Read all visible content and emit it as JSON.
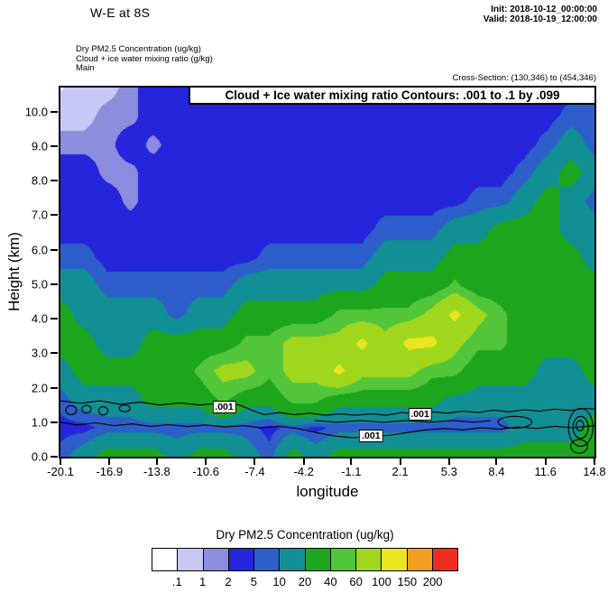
{
  "header": {
    "title": "W-E at 8S",
    "init_label": "Init: 2018-10-12_00:00:00",
    "valid_label": "Valid: 2018-10-19_12:00:00",
    "field1": "Dry PM2.5 Concentration   (ug/kg)",
    "field2": "Cloud + ice water mixing ratio   (g/kg)",
    "field3": "Main",
    "cross_section": "Cross-Section: (130,346) to (454,346)"
  },
  "plot": {
    "overlay_title": "Cloud + Ice water mixing ratio Contours: .001 to .1 by .099",
    "xlabel": "longitude",
    "ylabel": "Height (km)"
  },
  "legend": {
    "title": "Dry PM2.5 Concentration  (ug/kg)",
    "tick_labels": [
      ".1",
      "1",
      "2",
      "5",
      "10",
      "20",
      "40",
      "60",
      "100",
      "150",
      "200"
    ]
  },
  "chart_data": {
    "type": "heatmap",
    "title": "W-E at 8S vertical cross-section: Dry PM2.5 Concentration (ug/kg) filled contours with Cloud + Ice water mixing ratio contours (.001 to .1 by .099 g/kg)",
    "xlabel": "longitude",
    "ylabel": "Height (km)",
    "x_range": [
      -20.1,
      14.8
    ],
    "y_range": [
      0,
      10.7
    ],
    "x_ticks": [
      -20.1,
      -16.9,
      -13.8,
      -10.6,
      -7.4,
      -4.2,
      -1.1,
      2.1,
      5.3,
      8.4,
      11.6,
      14.8
    ],
    "x_tick_labels": [
      "-20.1",
      "-16.9",
      "-13.8",
      "-10.6",
      "-7.4",
      "-4.2",
      "-1.1",
      "2.1",
      "5.3",
      "8.4",
      "11.6",
      "14.8"
    ],
    "y_ticks": [
      0,
      1,
      2,
      3,
      4,
      5,
      6,
      7,
      8,
      9,
      10
    ],
    "y_tick_labels": [
      "0.0",
      "1.0",
      "2.0",
      "3.0",
      "4.0",
      "5.0",
      "6.0",
      "7.0",
      "8.0",
      "9.0",
      "10.0"
    ],
    "levels": [
      0.1,
      1,
      2,
      5,
      10,
      20,
      40,
      60,
      100,
      150,
      200
    ],
    "colors": [
      "#ffffff",
      "#c8c8f4",
      "#8d8ddf",
      "#2525dc",
      "#2d5ec9",
      "#128f94",
      "#1ea51e",
      "#53c53a",
      "#a0d61e",
      "#e9e621",
      "#f0a01e",
      "#ee2d21"
    ],
    "grid": {
      "ny": 14,
      "nx": 24,
      "values": [
        [
          0.05,
          0.5,
          0.5,
          1.5,
          3,
          3,
          3,
          3,
          3,
          3,
          3,
          3,
          3,
          3,
          3,
          3,
          3,
          3,
          3,
          3,
          3,
          3,
          3,
          3
        ],
        [
          0.5,
          0.5,
          1.5,
          1.5,
          3,
          3,
          3,
          3,
          3,
          3,
          3,
          3,
          3,
          3,
          3,
          3,
          3,
          3,
          3,
          3,
          3,
          3,
          7,
          7
        ],
        [
          1.5,
          1.5,
          1.5,
          3,
          1.5,
          3,
          3,
          3,
          3,
          3,
          3,
          3,
          3,
          3,
          3,
          3,
          3,
          3,
          3,
          3,
          3,
          7,
          15,
          7
        ],
        [
          3,
          3,
          1.5,
          1.5,
          3,
          3,
          3,
          3,
          3,
          3,
          3,
          3,
          3,
          3,
          3,
          3,
          3,
          3,
          3,
          3,
          7,
          15,
          25,
          15
        ],
        [
          3,
          3,
          3,
          1.5,
          3,
          3,
          3,
          3,
          3,
          3,
          3,
          3,
          3,
          3,
          3,
          3,
          3,
          3,
          7,
          7,
          15,
          25,
          15,
          7
        ],
        [
          3,
          3,
          3,
          3,
          3,
          3,
          3,
          3,
          3,
          3,
          3,
          3,
          3,
          3,
          7,
          7,
          7,
          15,
          15,
          25,
          25,
          25,
          15,
          15
        ],
        [
          7,
          7,
          3,
          3,
          3,
          3,
          3,
          3,
          3,
          7,
          7,
          7,
          7,
          7,
          15,
          15,
          15,
          25,
          25,
          25,
          25,
          25,
          25,
          15
        ],
        [
          15,
          15,
          7,
          7,
          7,
          7,
          7,
          7,
          15,
          15,
          15,
          15,
          15,
          15,
          25,
          25,
          25,
          45,
          25,
          25,
          25,
          25,
          25,
          25
        ],
        [
          25,
          15,
          15,
          15,
          15,
          7,
          15,
          15,
          25,
          25,
          25,
          25,
          45,
          45,
          45,
          45,
          70,
          110,
          70,
          45,
          25,
          25,
          25,
          25
        ],
        [
          25,
          25,
          15,
          15,
          25,
          25,
          25,
          25,
          45,
          45,
          70,
          70,
          70,
          110,
          70,
          110,
          110,
          70,
          45,
          45,
          25,
          25,
          25,
          25
        ],
        [
          15,
          25,
          25,
          25,
          25,
          25,
          45,
          70,
          70,
          45,
          70,
          70,
          110,
          70,
          70,
          70,
          45,
          45,
          25,
          25,
          25,
          15,
          15,
          25
        ],
        [
          7,
          15,
          15,
          15,
          25,
          25,
          25,
          45,
          25,
          25,
          45,
          45,
          25,
          25,
          25,
          25,
          25,
          15,
          15,
          15,
          15,
          15,
          15,
          15
        ],
        [
          3,
          3,
          7,
          7,
          7,
          7,
          7,
          7,
          7,
          3,
          7,
          3,
          7,
          7,
          7,
          7,
          7,
          7,
          7,
          7,
          15,
          15,
          15,
          25
        ],
        [
          7,
          15,
          25,
          25,
          25,
          15,
          25,
          25,
          15,
          7,
          25,
          15,
          25,
          25,
          25,
          25,
          25,
          25,
          25,
          25,
          25,
          25,
          25,
          25
        ]
      ]
    },
    "cloud_contours": {
      "contour_value": ".001",
      "polylines": [
        [
          [
            -20.1,
            1.62
          ],
          [
            -18.8,
            1.55
          ],
          [
            -17.5,
            1.62
          ],
          [
            -16.2,
            1.52
          ],
          [
            -14.9,
            1.58
          ],
          [
            -13.6,
            1.5
          ],
          [
            -12.3,
            1.56
          ],
          [
            -11,
            1.5
          ],
          [
            -9.7,
            1.55
          ],
          [
            -8.4,
            1.5
          ],
          [
            -7.6,
            1.35
          ],
          [
            -6.8,
            1.22
          ],
          [
            -5.8,
            1.28
          ],
          [
            -4.8,
            1.22
          ],
          [
            -3.8,
            1.26
          ],
          [
            -2.8,
            1.2
          ],
          [
            -1.8,
            1.24
          ],
          [
            -0.8,
            1.2
          ],
          [
            0.2,
            1.24
          ],
          [
            1.2,
            1.2
          ],
          [
            2.2,
            1.28
          ],
          [
            3.2,
            1.24
          ],
          [
            4.2,
            1.3
          ],
          [
            5.2,
            1.26
          ],
          [
            6.2,
            1.32
          ],
          [
            7.2,
            1.28
          ],
          [
            8.2,
            1.35
          ],
          [
            9.2,
            1.3
          ],
          [
            10.2,
            1.36
          ],
          [
            11.2,
            1.32
          ],
          [
            12.2,
            1.38
          ],
          [
            13.2,
            1.34
          ],
          [
            14.2,
            1.4
          ],
          [
            14.8,
            1.38
          ]
        ],
        [
          [
            -20.1,
            1.0
          ],
          [
            -19,
            0.92
          ],
          [
            -17.8,
            0.98
          ],
          [
            -16.6,
            0.9
          ],
          [
            -15.4,
            0.95
          ],
          [
            -14.2,
            0.88
          ],
          [
            -13,
            0.93
          ],
          [
            -11.8,
            0.87
          ],
          [
            -10.6,
            0.92
          ],
          [
            -9.4,
            0.86
          ],
          [
            -8.2,
            0.9
          ],
          [
            -7,
            0.84
          ],
          [
            -5.8,
            0.88
          ],
          [
            -4.6,
            0.82
          ],
          [
            -3.4,
            0.7
          ],
          [
            -2.2,
            0.6
          ],
          [
            -1,
            0.55
          ],
          [
            0.2,
            0.58
          ],
          [
            1.4,
            0.62
          ],
          [
            2.6,
            0.7
          ],
          [
            3.8,
            0.78
          ],
          [
            5,
            0.82
          ],
          [
            6.2,
            0.78
          ],
          [
            7.4,
            0.84
          ],
          [
            8.6,
            0.8
          ],
          [
            9.8,
            0.86
          ],
          [
            11,
            0.82
          ],
          [
            12.2,
            0.88
          ],
          [
            13.4,
            0.84
          ],
          [
            14.8,
            0.9
          ]
        ],
        [
          [
            -3.5,
            1.05
          ],
          [
            -2,
            1.0
          ],
          [
            -0.5,
            1.05
          ],
          [
            1,
            1.0
          ],
          [
            2.5,
            1.05
          ],
          [
            4,
            1.0
          ],
          [
            5.5,
            1.05
          ],
          [
            7,
            1.0
          ],
          [
            8,
            1.05
          ]
        ]
      ],
      "ellipses": [
        {
          "cx": -19.4,
          "cy": 1.35,
          "rx": 0.35,
          "ry": 0.13
        },
        {
          "cx": -18.4,
          "cy": 1.38,
          "rx": 0.3,
          "ry": 0.11
        },
        {
          "cx": -17.3,
          "cy": 1.33,
          "rx": 0.3,
          "ry": 0.12
        },
        {
          "cx": -15.9,
          "cy": 1.4,
          "rx": 0.35,
          "ry": 0.1
        },
        {
          "cx": 9.6,
          "cy": 1.0,
          "rx": 1.1,
          "ry": 0.17
        },
        {
          "cx": 13.9,
          "cy": 0.85,
          "rx": 0.8,
          "ry": 0.55
        },
        {
          "cx": 13.9,
          "cy": 0.85,
          "rx": 0.5,
          "ry": 0.32
        },
        {
          "cx": 13.85,
          "cy": 0.9,
          "rx": 0.25,
          "ry": 0.15
        },
        {
          "cx": 13.8,
          "cy": 0.3,
          "rx": 0.55,
          "ry": 0.2
        }
      ],
      "labels": [
        {
          "x": -9.4,
          "y": 1.45,
          "text": ".001"
        },
        {
          "x": 3.4,
          "y": 1.22,
          "text": ".001"
        },
        {
          "x": 0.2,
          "y": 0.6,
          "text": ".001"
        }
      ]
    }
  }
}
